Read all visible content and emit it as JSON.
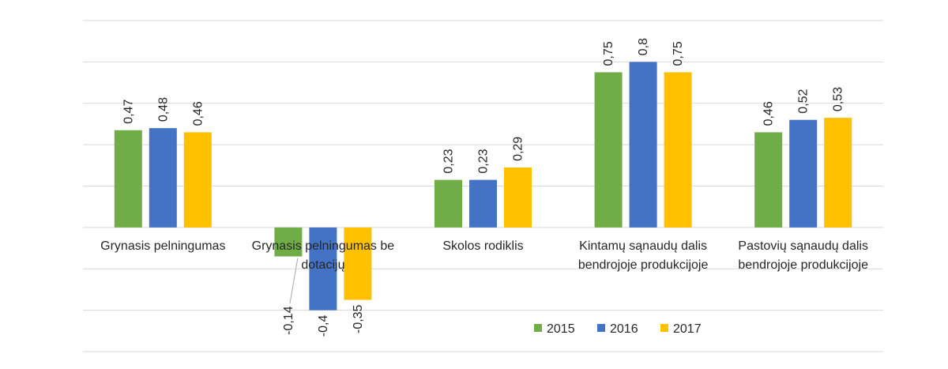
{
  "chart_data": {
    "type": "bar",
    "categories": [
      [
        "Grynasis pelningumas"
      ],
      [
        "Grynasis pelningumas be",
        "dotacijų"
      ],
      [
        "Skolos rodiklis"
      ],
      [
        "Kintamų sąnaudų dalis",
        "bendrojoje produkcijoje"
      ],
      [
        "Pastovių sąnaudų dalis",
        "bendrojoje produkcijoje"
      ]
    ],
    "series": [
      {
        "name": "2015",
        "color": "#70ad47",
        "values": [
          0.47,
          -0.14,
          0.23,
          0.75,
          0.46
        ],
        "labels": [
          "0,47",
          "-0,14",
          "0,23",
          "0,75",
          "0,46"
        ]
      },
      {
        "name": "2016",
        "color": "#4472c4",
        "values": [
          0.48,
          -0.4,
          0.23,
          0.8,
          0.52
        ],
        "labels": [
          "0,48",
          "-0,4",
          "0,23",
          "0,8",
          "0,52"
        ]
      },
      {
        "name": "2017",
        "color": "#ffc000",
        "values": [
          0.46,
          -0.35,
          0.29,
          0.75,
          0.53
        ],
        "labels": [
          "0,46",
          "-0,35",
          "0,29",
          "0,75",
          "0,53"
        ]
      }
    ],
    "ylim": [
      -0.6,
      1.0
    ],
    "gridlines": [
      -0.6,
      -0.4,
      -0.2,
      0,
      0.2,
      0.4,
      0.6,
      0.8,
      1.0
    ],
    "grid": true,
    "legend_position": "bottom-right",
    "data_labels": "rotated-vertical"
  }
}
